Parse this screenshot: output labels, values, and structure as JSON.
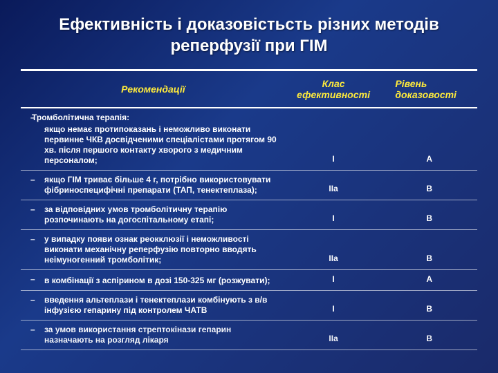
{
  "title": "Ефективність і доказовістьсть різних методів реперфузії при ГІМ",
  "columns": {
    "rec": "Рекомендації",
    "class": "Клас ефективності",
    "level": "Рівень доказовості"
  },
  "heading": "Тромболітична терапія:",
  "rows": [
    {
      "text": "якщо немає протипоказань і неможливо виконати первинне ЧКВ досвідченими спеціалістами протягом 90 хв. після першого контакту хворого з медичним персоналом;",
      "class": "I",
      "level": "A"
    },
    {
      "text": "якщо ГІМ триває більше 4 г, потрібно використовувати фібриноспецифічні препарати (ТАП, тенектеплаза);",
      "class": "IIa",
      "level": "B"
    },
    {
      "text": "за відповідних умов тромболітичну терапію розпочинають на догоспітальному етапі;",
      "class": "I",
      "level": "B"
    },
    {
      "text": "у випадку появи ознак реокклюзії і неможливості виконати механічну реперфузію повторно вводять неімуногенний тромболітик;",
      "class": "IIa",
      "level": "B"
    },
    {
      "text": "в комбінації з аспірином в дозі 150-325 мг (розжувати);",
      "class": "I",
      "level": "A"
    },
    {
      "text": "введення альтеплази і тенектеплази комбінують з в/в інфузією гепарину під контролем ЧАТВ",
      "class": "I",
      "level": "B"
    },
    {
      "text": "за умов використання стрептокінази гепарин назначають на розгляд лікаря",
      "class": "IIa",
      "level": "B"
    }
  ]
}
